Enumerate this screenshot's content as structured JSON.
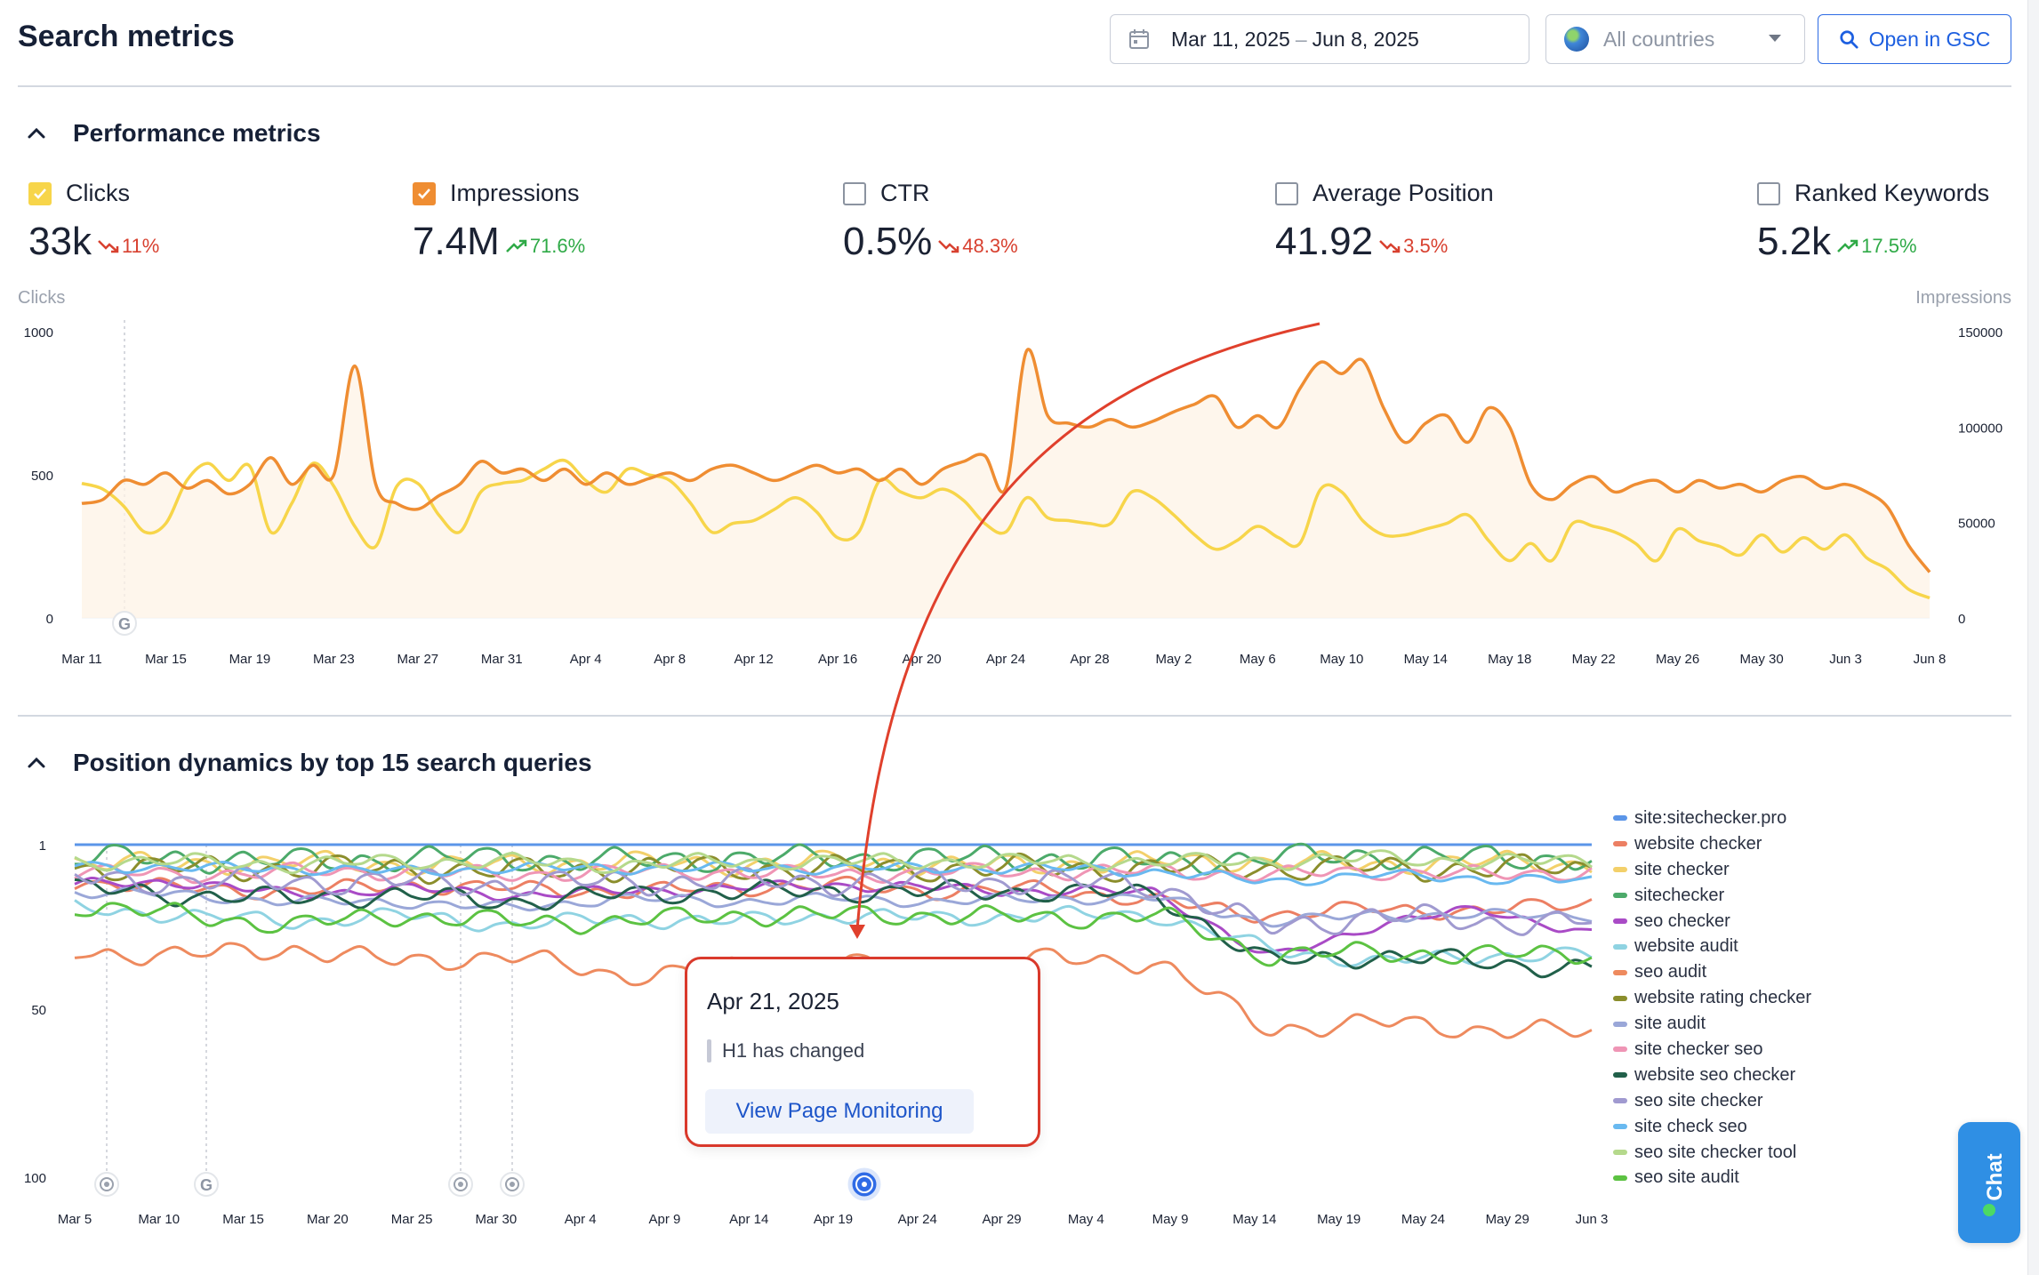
{
  "header": {
    "title": "Search metrics",
    "date_range_start": "Mar 11, 2025",
    "date_range_sep": "–",
    "date_range_end": "Jun 8, 2025",
    "country_placeholder": "All countries",
    "gsc_button": "Open in GSC"
  },
  "performance": {
    "title": "Performance metrics",
    "metrics": [
      {
        "label": "Clicks",
        "value": "33k",
        "delta": "11%",
        "trend": "down",
        "checked": true,
        "color": "#f7d54a"
      },
      {
        "label": "Impressions",
        "value": "7.4M",
        "delta": "71.6%",
        "trend": "up",
        "checked": true,
        "color": "#ef8d32"
      },
      {
        "label": "CTR",
        "value": "0.5%",
        "delta": "48.3%",
        "trend": "down",
        "checked": false
      },
      {
        "label": "Average Position",
        "value": "41.92",
        "delta": "3.5%",
        "trend": "down",
        "checked": false
      },
      {
        "label": "Ranked Keywords",
        "value": "5.2k",
        "delta": "17.5%",
        "trend": "up",
        "checked": false
      }
    ],
    "left_axis_caption": "Clicks",
    "right_axis_caption": "Impressions"
  },
  "positions": {
    "title": "Position dynamics by top 15 search queries"
  },
  "tooltip": {
    "date": "Apr 21, 2025",
    "note": "H1 has changed",
    "button": "View Page Monitoring"
  },
  "chat": {
    "label": "Chat"
  },
  "chart_data": [
    {
      "type": "line",
      "x_ticks": [
        "Mar 11",
        "Mar 15",
        "Mar 19",
        "Mar 23",
        "Mar 27",
        "Mar 31",
        "Apr 4",
        "Apr 8",
        "Apr 12",
        "Apr 16",
        "Apr 20",
        "Apr 24",
        "Apr 28",
        "May 2",
        "May 6",
        "May 10",
        "May 14",
        "May 18",
        "May 22",
        "May 26",
        "May 30",
        "Jun 3",
        "Jun 8"
      ],
      "y_left_ticks": [
        "0",
        "500",
        "1000"
      ],
      "y_right_ticks": [
        "0",
        "50000",
        "100000",
        "150000"
      ],
      "ylim_left": [
        0,
        1000
      ],
      "ylim_right": [
        0,
        150000
      ],
      "series": [
        {
          "name": "Clicks",
          "axis": "left",
          "color": "#f7d54a",
          "values": [
            470,
            450,
            390,
            300,
            330,
            480,
            540,
            480,
            530,
            300,
            400,
            540,
            460,
            320,
            250,
            460,
            470,
            360,
            300,
            440,
            470,
            480,
            520,
            550,
            480,
            440,
            520,
            500,
            480,
            400,
            300,
            330,
            340,
            380,
            420,
            370,
            280,
            300,
            480,
            440,
            420,
            450,
            410,
            330,
            300,
            420,
            350,
            340,
            330,
            330,
            440,
            420,
            360,
            290,
            240,
            270,
            320,
            280,
            260,
            450,
            440,
            340,
            290,
            290,
            310,
            330,
            360,
            270,
            200,
            260,
            200,
            330,
            320,
            300,
            260,
            200,
            310,
            270,
            250,
            220,
            290,
            230,
            280,
            240,
            290,
            210,
            170,
            100,
            70
          ]
        },
        {
          "name": "Impressions",
          "axis": "right",
          "color": "#ef8d32",
          "values": [
            60000,
            62000,
            72000,
            70000,
            76000,
            68000,
            72000,
            65000,
            70000,
            84000,
            70000,
            80000,
            75000,
            132000,
            70000,
            60000,
            57000,
            64000,
            70000,
            82000,
            76000,
            78000,
            72000,
            78000,
            70000,
            76000,
            70000,
            73000,
            76000,
            72000,
            78000,
            80000,
            76000,
            72000,
            76000,
            80000,
            76000,
            78000,
            72000,
            78000,
            70000,
            78000,
            82000,
            85000,
            68000,
            140000,
            106000,
            102000,
            100000,
            104000,
            100000,
            103000,
            108000,
            112000,
            116000,
            100000,
            106000,
            100000,
            120000,
            134000,
            128000,
            135000,
            110000,
            92000,
            102000,
            106000,
            92000,
            110000,
            100000,
            70000,
            62000,
            70000,
            74000,
            66000,
            70000,
            72000,
            66000,
            72000,
            68000,
            70000,
            66000,
            72000,
            74000,
            68000,
            70000,
            66000,
            58000,
            38000,
            24000
          ]
        }
      ]
    },
    {
      "type": "line",
      "x_ticks": [
        "Mar 5",
        "Mar 10",
        "Mar 15",
        "Mar 20",
        "Mar 25",
        "Mar 30",
        "Apr 4",
        "Apr 9",
        "Apr 14",
        "Apr 19",
        "Apr 24",
        "Apr 29",
        "May 4",
        "May 9",
        "May 14",
        "May 19",
        "May 24",
        "May 29",
        "Jun 3"
      ],
      "y_ticks": [
        "1",
        "50",
        "100"
      ],
      "ylim": [
        1,
        100
      ],
      "inverted_y": true,
      "series": [
        {
          "name": "site:sitechecker.pro",
          "color": "#5b95e8",
          "values": [
            1,
            1,
            1,
            1,
            1,
            1,
            1,
            1,
            1,
            1,
            1,
            1,
            1,
            1,
            1
          ]
        },
        {
          "name": "website checker",
          "color": "#ec7f63",
          "values": [
            12,
            14,
            15,
            13,
            14,
            15,
            14,
            13,
            15,
            14,
            18,
            22,
            20,
            21,
            18
          ]
        },
        {
          "name": "site checker",
          "color": "#f3d06a",
          "values": [
            6,
            7,
            6,
            7,
            7,
            6,
            7,
            6,
            7,
            7,
            6,
            6,
            7,
            6,
            7
          ]
        },
        {
          "name": "sitechecker",
          "color": "#4caa6a",
          "values": [
            5,
            5,
            6,
            5,
            5,
            6,
            5,
            5,
            5,
            5,
            6,
            5,
            4,
            5,
            5
          ]
        },
        {
          "name": "seo checker",
          "color": "#a94bc6",
          "values": [
            13,
            12,
            16,
            14,
            16,
            15,
            14,
            13,
            14,
            15,
            15,
            35,
            25,
            20,
            28
          ]
        },
        {
          "name": "website audit",
          "color": "#8fd3e2",
          "values": [
            20,
            22,
            24,
            22,
            25,
            23,
            24,
            22,
            23,
            22,
            22,
            32,
            36,
            34,
            34
          ]
        },
        {
          "name": "seo audit",
          "color": "#ee8a5e",
          "values": [
            33,
            34,
            32,
            36,
            34,
            40,
            38,
            36,
            38,
            35,
            36,
            56,
            54,
            56,
            57
          ]
        },
        {
          "name": "website rating checker",
          "color": "#8b8e2c",
          "values": [
            8,
            8,
            8,
            8,
            9,
            8,
            8,
            8,
            8,
            8,
            8,
            8,
            8,
            8,
            8
          ]
        },
        {
          "name": "site audit",
          "color": "#9aa7d8",
          "values": [
            15,
            16,
            18,
            18,
            20,
            17,
            18,
            17,
            18,
            17,
            17,
            24,
            22,
            22,
            22
          ]
        },
        {
          "name": "site checker seo",
          "color": "#ef95b5",
          "values": [
            9,
            10,
            9,
            9,
            10,
            9,
            9,
            10,
            9,
            9,
            9,
            10,
            9,
            10,
            9
          ]
        },
        {
          "name": "website seo checker",
          "color": "#21604a",
          "values": [
            14,
            16,
            17,
            16,
            18,
            16,
            15,
            15,
            15,
            15,
            16,
            36,
            34,
            36,
            38
          ]
        },
        {
          "name": "seo site checker",
          "color": "#a09ad0",
          "values": [
            11,
            12,
            12,
            12,
            13,
            12,
            12,
            12,
            12,
            12,
            13,
            26,
            22,
            24,
            24
          ]
        },
        {
          "name": "site check seo",
          "color": "#69b9f0",
          "values": [
            7,
            8,
            8,
            9,
            8,
            8,
            8,
            8,
            8,
            8,
            9,
            12,
            10,
            11,
            12
          ]
        },
        {
          "name": "seo site checker tool",
          "color": "#b5d98c",
          "values": [
            6,
            6,
            7,
            6,
            6,
            7,
            6,
            6,
            6,
            6,
            6,
            6,
            5,
            6,
            6
          ]
        },
        {
          "name": "seo site audit",
          "color": "#5cc242",
          "values": [
            19,
            22,
            25,
            22,
            24,
            24,
            22,
            22,
            22,
            23,
            22,
            34,
            33,
            34,
            33
          ]
        }
      ]
    }
  ]
}
